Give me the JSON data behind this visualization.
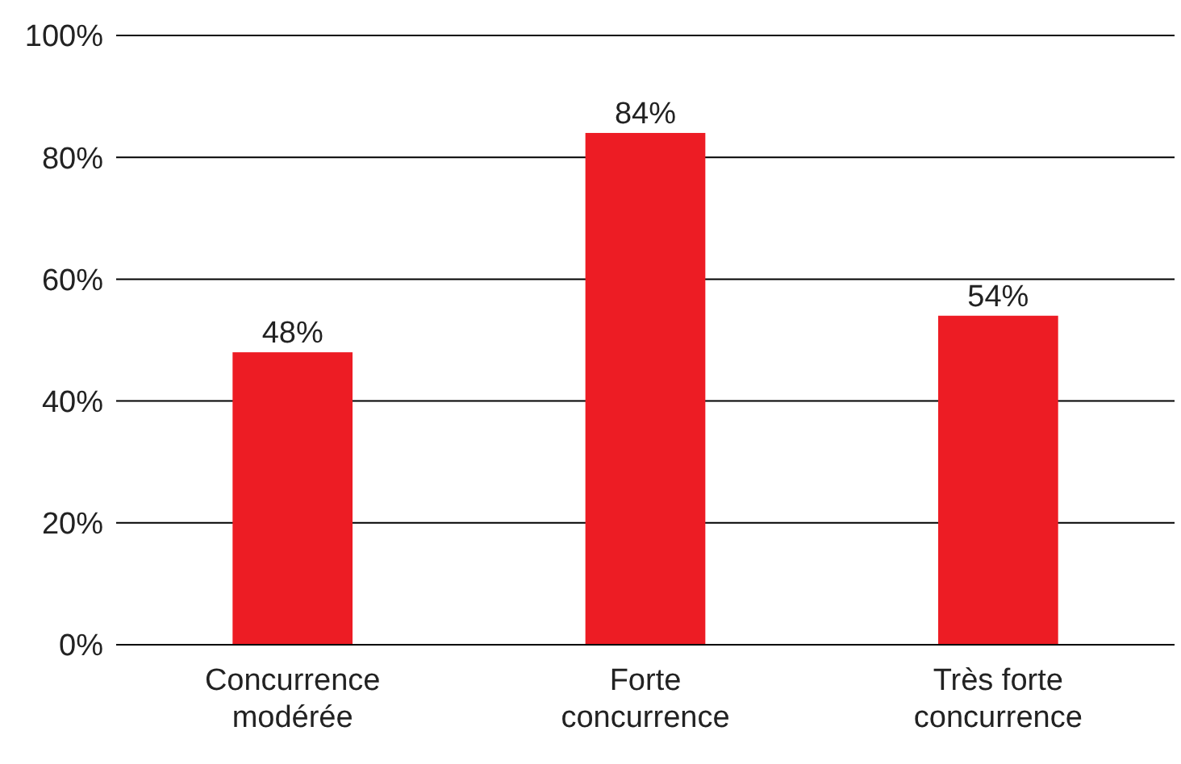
{
  "chart_data": {
    "type": "bar",
    "categories": [
      "Concurrence modérée",
      "Forte concurrence",
      "Très forte concurrence"
    ],
    "values": [
      48,
      84,
      54
    ],
    "value_labels": [
      "48%",
      "84%",
      "54%"
    ],
    "color": "#ed1c24",
    "ylim": [
      0,
      100
    ],
    "yticks": [
      {
        "value": 0,
        "label": "0%"
      },
      {
        "value": 20,
        "label": "20%"
      },
      {
        "value": 40,
        "label": "40%"
      },
      {
        "value": 60,
        "label": "60%"
      },
      {
        "value": 80,
        "label": "80%"
      },
      {
        "value": 100,
        "label": "100%"
      }
    ],
    "grid": "y"
  }
}
